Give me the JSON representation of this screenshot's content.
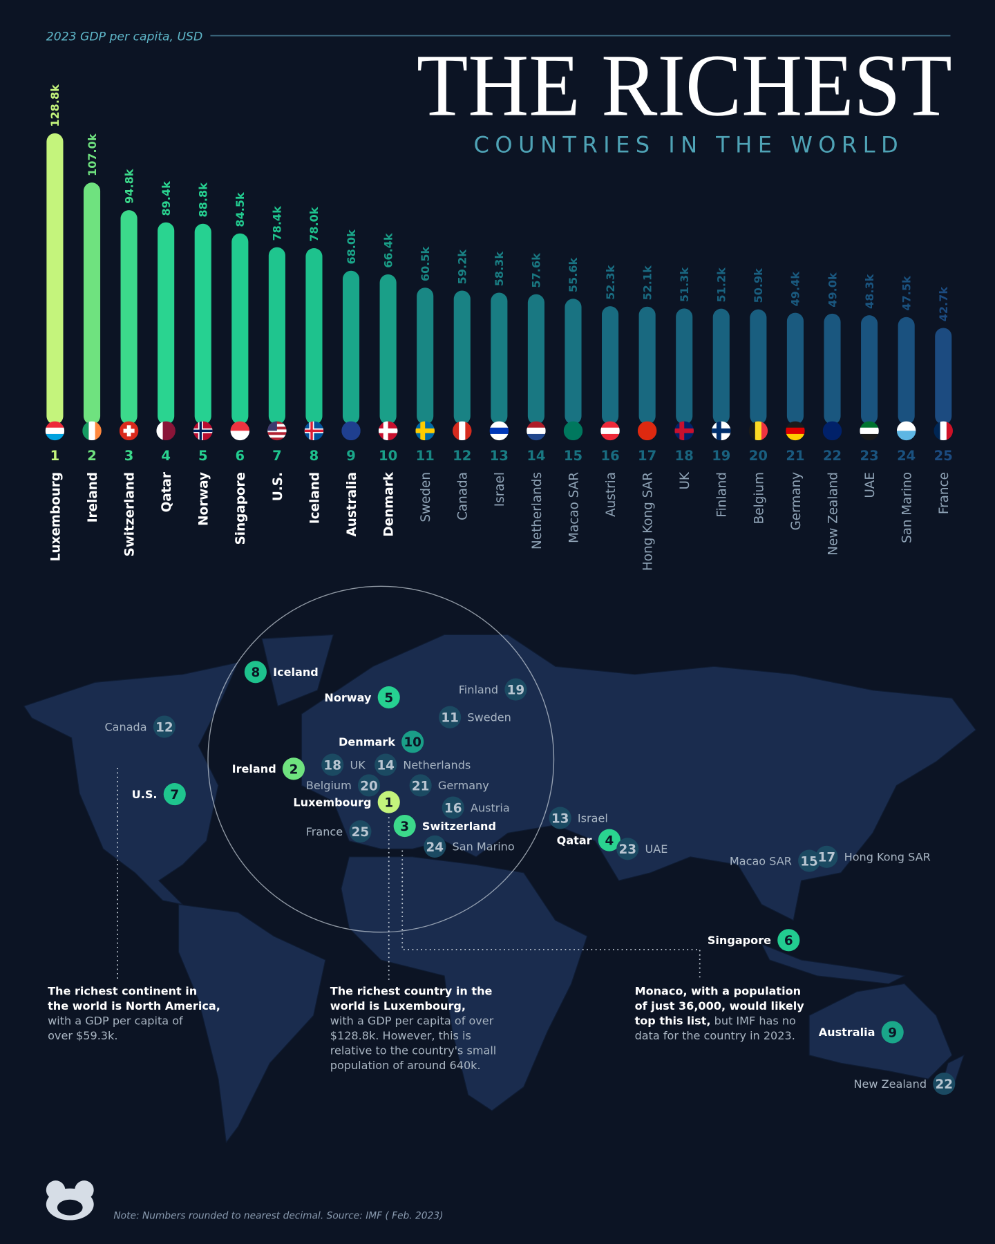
{
  "chart_data": {
    "type": "bar",
    "subtitle": "2023 GDP per capita, USD",
    "title": "THE RICHEST",
    "title_line2": "COUNTRIES IN THE WORLD",
    "categories": [
      "Luxembourg",
      "Ireland",
      "Switzerland",
      "Qatar",
      "Norway",
      "Singapore",
      "U.S.",
      "Iceland",
      "Australia",
      "Denmark",
      "Sweden",
      "Canada",
      "Israel",
      "Netherlands",
      "Macao SAR",
      "Austria",
      "Hong Kong SAR",
      "UK",
      "Finland",
      "Belgium",
      "Germany",
      "New Zealand",
      "UAE",
      "San Marino",
      "France"
    ],
    "values": [
      128.8,
      107.0,
      94.8,
      89.4,
      88.8,
      84.5,
      78.4,
      78.0,
      68.0,
      66.4,
      60.5,
      59.2,
      58.3,
      57.6,
      55.6,
      52.3,
      52.1,
      51.3,
      51.2,
      50.9,
      49.4,
      49.0,
      48.3,
      47.5,
      42.7
    ],
    "value_labels": [
      "128.8k",
      "107.0k",
      "94.8k",
      "89.4k",
      "88.8k",
      "84.5k",
      "78.4k",
      "78.0k",
      "68.0k",
      "66.4k",
      "60.5k",
      "59.2k",
      "58.3k",
      "57.6k",
      "55.6k",
      "52.3k",
      "52.1k",
      "51.3k",
      "51.2k",
      "50.9k",
      "49.4k",
      "49.0k",
      "48.3k",
      "47.5k",
      "42.7k"
    ],
    "ranks": [
      1,
      2,
      3,
      4,
      5,
      6,
      7,
      8,
      9,
      10,
      11,
      12,
      13,
      14,
      15,
      16,
      17,
      18,
      19,
      20,
      21,
      22,
      23,
      24,
      25
    ],
    "colors": [
      "#c4f47c",
      "#6fe27f",
      "#3cd98b",
      "#2ad490",
      "#26d191",
      "#22cc90",
      "#1fc58e",
      "#1ec28d",
      "#1aa78a",
      "#1a9f88",
      "#198784",
      "#198284",
      "#197d83",
      "#197882",
      "#197382",
      "#196c81",
      "#196980",
      "#19657f",
      "#19627f",
      "#195e7f",
      "#1a5a7f",
      "#1a577f",
      "#1a547f",
      "#1a517f",
      "#1c4b80"
    ]
  },
  "map": {
    "markers": [
      {
        "rank": 8,
        "label": "Iceland"
      },
      {
        "rank": 5,
        "label": "Norway"
      },
      {
        "rank": 19,
        "label": "Finland"
      },
      {
        "rank": 12,
        "label": "Canada"
      },
      {
        "rank": 11,
        "label": "Sweden"
      },
      {
        "rank": 10,
        "label": "Denmark"
      },
      {
        "rank": 2,
        "label": "Ireland"
      },
      {
        "rank": 18,
        "label": "UK"
      },
      {
        "rank": 14,
        "label": "Netherlands"
      },
      {
        "rank": 7,
        "label": "U.S."
      },
      {
        "rank": 20,
        "label": "Belgium"
      },
      {
        "rank": 21,
        "label": "Germany"
      },
      {
        "rank": 1,
        "label": "Luxembourg"
      },
      {
        "rank": 16,
        "label": "Austria"
      },
      {
        "rank": 13,
        "label": "Israel"
      },
      {
        "rank": 3,
        "label": "Switzerland"
      },
      {
        "rank": 25,
        "label": "France"
      },
      {
        "rank": 4,
        "label": "Qatar"
      },
      {
        "rank": 23,
        "label": "UAE"
      },
      {
        "rank": 24,
        "label": "San Marino"
      },
      {
        "rank": 15,
        "label": "Macao SAR"
      },
      {
        "rank": 17,
        "label": "Hong Kong SAR"
      },
      {
        "rank": 6,
        "label": "Singapore"
      },
      {
        "rank": 9,
        "label": "Australia"
      },
      {
        "rank": 22,
        "label": "New Zealand"
      }
    ]
  },
  "notes": [
    {
      "lines": [
        [
          {
            "text": "The richest continent in",
            "bold": true
          }
        ],
        [
          {
            "text": "the world is North America,",
            "bold": true
          }
        ],
        [
          {
            "text": "with a GDP per capita of",
            "bold": false
          }
        ],
        [
          {
            "text": "over $59.3k.",
            "bold": false
          }
        ]
      ]
    },
    {
      "lines": [
        [
          {
            "text": "The richest country in the",
            "bold": true
          }
        ],
        [
          {
            "text": "world is Luxembourg,",
            "bold": true
          }
        ],
        [
          {
            "text": "with a GDP per capita of over",
            "bold": false
          }
        ],
        [
          {
            "text": "$128.8k. However, this is",
            "bold": false
          }
        ],
        [
          {
            "text": "relative to the country's small",
            "bold": false
          }
        ],
        [
          {
            "text": "population of around 640k.",
            "bold": false
          }
        ]
      ]
    },
    {
      "lines": [
        [
          {
            "text": "Monaco, with a population",
            "bold": true
          }
        ],
        [
          {
            "text": "of just 36,000, would likely",
            "bold": true
          }
        ],
        [
          {
            "text": "top this list,",
            "bold": true
          },
          {
            "text": " but IMF has no",
            "bold": false
          }
        ],
        [
          {
            "text": "data for the country in 2023.",
            "bold": false
          }
        ]
      ]
    }
  ],
  "footer": {
    "note": "Note: Numbers rounded to nearest decimal. Source: IMF ( Feb. 2023)"
  }
}
